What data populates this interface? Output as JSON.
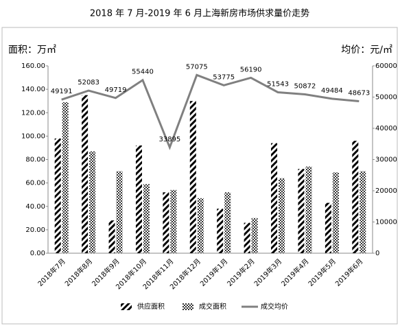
{
  "chart_data": {
    "type": "bar-line",
    "title": "2018 年 7 月-2019 年 6 月上海新房市场供求量价走势",
    "y_label": "面积：万㎡",
    "y2_label": "均价：元/㎡",
    "categories": [
      "2018年7月",
      "2018年8月",
      "2018年9月",
      "2018年10月",
      "2018年11月",
      "2018年12月",
      "2019年1月",
      "2019年2月",
      "2019年3月",
      "2019年4月",
      "2019年5月",
      "2019年6月"
    ],
    "series": [
      {
        "name": "供应面积",
        "type": "bar",
        "pattern": "hatch",
        "color": "#000000",
        "values": [
          98,
          135,
          28,
          92,
          52,
          130,
          38,
          26,
          94,
          72,
          43,
          96
        ]
      },
      {
        "name": "成交面积",
        "type": "bar",
        "pattern": "checker",
        "color": "#333333",
        "values": [
          129,
          87,
          70,
          59,
          54,
          47,
          52,
          30,
          64,
          74,
          69,
          70
        ]
      },
      {
        "name": "成交均价",
        "type": "line",
        "axis": "y2",
        "color": "#808080",
        "values": [
          49191,
          52083,
          49719,
          55440,
          33895,
          57075,
          53775,
          56190,
          51543,
          50872,
          49484,
          48673
        ]
      }
    ],
    "ylim": [
      0,
      160
    ],
    "yticks": [
      {
        "value": 0,
        "label": "0.00"
      },
      {
        "value": 20,
        "label": "20.00"
      },
      {
        "value": 40,
        "label": "40.00"
      },
      {
        "value": 60,
        "label": "60.00"
      },
      {
        "value": 80,
        "label": "80.00"
      },
      {
        "value": 100,
        "label": "100.00"
      },
      {
        "value": 120,
        "label": "120.00"
      },
      {
        "value": 140,
        "label": "140.00"
      },
      {
        "value": 160,
        "label": "160.00"
      }
    ],
    "y2lim": [
      0,
      60000
    ],
    "y2ticks": [
      0,
      10000,
      20000,
      30000,
      40000,
      50000,
      60000
    ],
    "grid": false,
    "legend": "bottom"
  }
}
